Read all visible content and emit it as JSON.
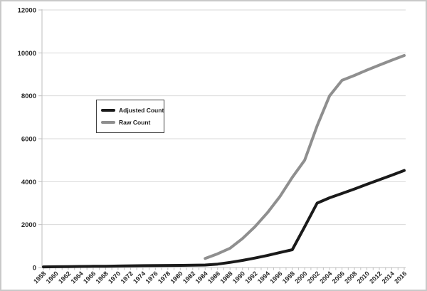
{
  "window": {
    "background": "#ffffff",
    "border_color": "#c9c9c9"
  },
  "chart_data": {
    "type": "line",
    "title": "",
    "xlabel": "",
    "ylabel": "",
    "ylim": [
      0,
      12000
    ],
    "y_ticks": [
      0,
      2000,
      4000,
      6000,
      8000,
      10000,
      12000
    ],
    "x_range_years": [
      1958,
      2016
    ],
    "x_minor_tick_every_years": 1,
    "x_label_every_years": 2,
    "x_tick_labels": [
      "1958",
      "1960",
      "1962",
      "1964",
      "1966",
      "1968",
      "1970",
      "1972",
      "1974",
      "1976",
      "1978",
      "1980",
      "1982",
      "1984",
      "1986",
      "1988",
      "1990",
      "1992",
      "1994",
      "1996",
      "1998",
      "2000",
      "2002",
      "2004",
      "2006",
      "2008",
      "2010",
      "2012",
      "2014",
      "2016"
    ],
    "grid": "horizontal",
    "gridline_color": "#d9d9d9",
    "axis_color": "#bfbfbf",
    "tick_label_color": "#262626",
    "legend_position": "inside-upper-left",
    "series": [
      {
        "name": "Adjusted Count",
        "color": "#1a1a1a",
        "stroke_width": 4,
        "points": [
          [
            1958,
            30
          ],
          [
            1960,
            35
          ],
          [
            1962,
            40
          ],
          [
            1964,
            50
          ],
          [
            1966,
            55
          ],
          [
            1968,
            60
          ],
          [
            1970,
            70
          ],
          [
            1972,
            80
          ],
          [
            1974,
            85
          ],
          [
            1976,
            90
          ],
          [
            1978,
            95
          ],
          [
            1980,
            100
          ],
          [
            1982,
            105
          ],
          [
            1984,
            115
          ],
          [
            1986,
            160
          ],
          [
            1988,
            240
          ],
          [
            1990,
            330
          ],
          [
            1992,
            440
          ],
          [
            1994,
            560
          ],
          [
            1996,
            700
          ],
          [
            1998,
            830
          ],
          [
            2000,
            1900
          ],
          [
            2002,
            3000
          ],
          [
            2004,
            3250
          ],
          [
            2006,
            3450
          ],
          [
            2008,
            3660
          ],
          [
            2010,
            3880
          ],
          [
            2012,
            4090
          ],
          [
            2014,
            4300
          ],
          [
            2016,
            4520
          ]
        ]
      },
      {
        "name": "Raw Count",
        "color": "#8f8f8f",
        "stroke_width": 4,
        "points": [
          [
            1984,
            420
          ],
          [
            1986,
            640
          ],
          [
            1988,
            900
          ],
          [
            1990,
            1350
          ],
          [
            1992,
            1900
          ],
          [
            1994,
            2550
          ],
          [
            1996,
            3300
          ],
          [
            1998,
            4200
          ],
          [
            2000,
            5000
          ],
          [
            2002,
            6600
          ],
          [
            2004,
            8000
          ],
          [
            2006,
            8720
          ],
          [
            2008,
            8950
          ],
          [
            2010,
            9200
          ],
          [
            2012,
            9430
          ],
          [
            2014,
            9660
          ],
          [
            2016,
            9880
          ]
        ]
      }
    ]
  }
}
